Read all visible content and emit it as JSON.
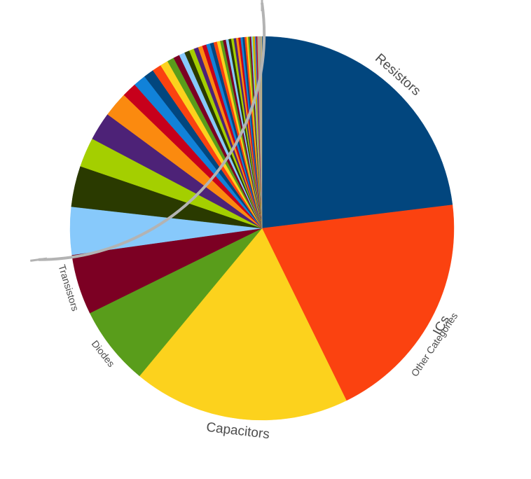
{
  "chart_data": {
    "type": "pie",
    "start_angle_deg": 0,
    "direction": "clockwise-from-top",
    "slices": [
      {
        "label": "Resistors",
        "value": 24.1,
        "color": "#02467E"
      },
      {
        "label": "ICs",
        "value": 20.6,
        "color": "#FB4210"
      },
      {
        "label": "Capacitors",
        "value": 19.1,
        "color": "#FCD21D"
      },
      {
        "label": "Diodes",
        "value": 7.0,
        "color": "#599D1B"
      },
      {
        "label": "Transistors",
        "value": 5.3,
        "color": "#7C0023"
      },
      {
        "label": "",
        "value": 4.2,
        "color": "#87C9FB"
      },
      {
        "label": "",
        "value": 3.6,
        "color": "#2A3A00"
      },
      {
        "label": "",
        "value": 2.6,
        "color": "#A4CF00"
      },
      {
        "label": "",
        "value": 2.5,
        "color": "#4D2277"
      },
      {
        "label": "",
        "value": 2.2,
        "color": "#FB8A0F"
      },
      {
        "label": "",
        "value": 1.3,
        "color": "#C7001B"
      },
      {
        "label": "",
        "value": 1.1,
        "color": "#1182D9"
      },
      {
        "label": "",
        "value": 0.9,
        "color": "#02467E"
      },
      {
        "label": "",
        "value": 0.8,
        "color": "#FB4210"
      },
      {
        "label": "",
        "value": 0.7,
        "color": "#FCD21D"
      },
      {
        "label": "",
        "value": 0.6,
        "color": "#599D1B"
      },
      {
        "label": "",
        "value": 0.55,
        "color": "#7C0023"
      },
      {
        "label": "",
        "value": 0.5,
        "color": "#87C9FB"
      },
      {
        "label": "",
        "value": 0.45,
        "color": "#2A3A00"
      },
      {
        "label": "",
        "value": 0.42,
        "color": "#A4CF00"
      },
      {
        "label": "",
        "value": 0.4,
        "color": "#4D2277"
      },
      {
        "label": "",
        "value": 0.38,
        "color": "#FB8A0F"
      },
      {
        "label": "",
        "value": 0.36,
        "color": "#C7001B"
      },
      {
        "label": "",
        "value": 0.34,
        "color": "#1182D9"
      },
      {
        "label": "",
        "value": 0.32,
        "color": "#02467E"
      },
      {
        "label": "",
        "value": 0.3,
        "color": "#FB4210"
      },
      {
        "label": "",
        "value": 0.28,
        "color": "#FCD21D"
      },
      {
        "label": "",
        "value": 0.26,
        "color": "#599D1B"
      },
      {
        "label": "",
        "value": 0.25,
        "color": "#7C0023"
      },
      {
        "label": "",
        "value": 0.24,
        "color": "#87C9FB"
      },
      {
        "label": "",
        "value": 0.23,
        "color": "#2A3A00"
      },
      {
        "label": "",
        "value": 0.22,
        "color": "#A4CF00"
      },
      {
        "label": "",
        "value": 0.21,
        "color": "#4D2277"
      },
      {
        "label": "",
        "value": 0.2,
        "color": "#FB8A0F"
      },
      {
        "label": "",
        "value": 0.19,
        "color": "#C7001B"
      },
      {
        "label": "",
        "value": 0.18,
        "color": "#1182D9"
      },
      {
        "label": "",
        "value": 0.17,
        "color": "#02467E"
      },
      {
        "label": "",
        "value": 0.16,
        "color": "#FB4210"
      },
      {
        "label": "",
        "value": 0.15,
        "color": "#FCD21D"
      },
      {
        "label": "",
        "value": 0.14,
        "color": "#599D1B"
      },
      {
        "label": "",
        "value": 0.13,
        "color": "#7C0023"
      },
      {
        "label": "",
        "value": 0.12,
        "color": "#87C9FB"
      },
      {
        "label": "",
        "value": 0.11,
        "color": "#A4CF00"
      },
      {
        "label": "",
        "value": 0.1,
        "color": "#FB8A0F"
      },
      {
        "label": "",
        "value": 0.1,
        "color": "#1182D9"
      },
      {
        "label": "",
        "value": 0.1,
        "color": "#C7001B"
      },
      {
        "label": "",
        "value": 0.1,
        "color": "#A0A0A0"
      },
      {
        "label": "",
        "value": 0.1,
        "color": "#C2B280"
      },
      {
        "label": "",
        "value": 0.1,
        "color": "#A0A0A0"
      },
      {
        "label": "",
        "value": 0.1,
        "color": "#C2B280"
      }
    ],
    "group_annotation": {
      "label": "Other Categories",
      "spans_slices_after": "Transistors"
    },
    "legend": "none",
    "colors": {
      "label_text": "#4d4d4d",
      "bracket": "#b3b3b3"
    }
  }
}
